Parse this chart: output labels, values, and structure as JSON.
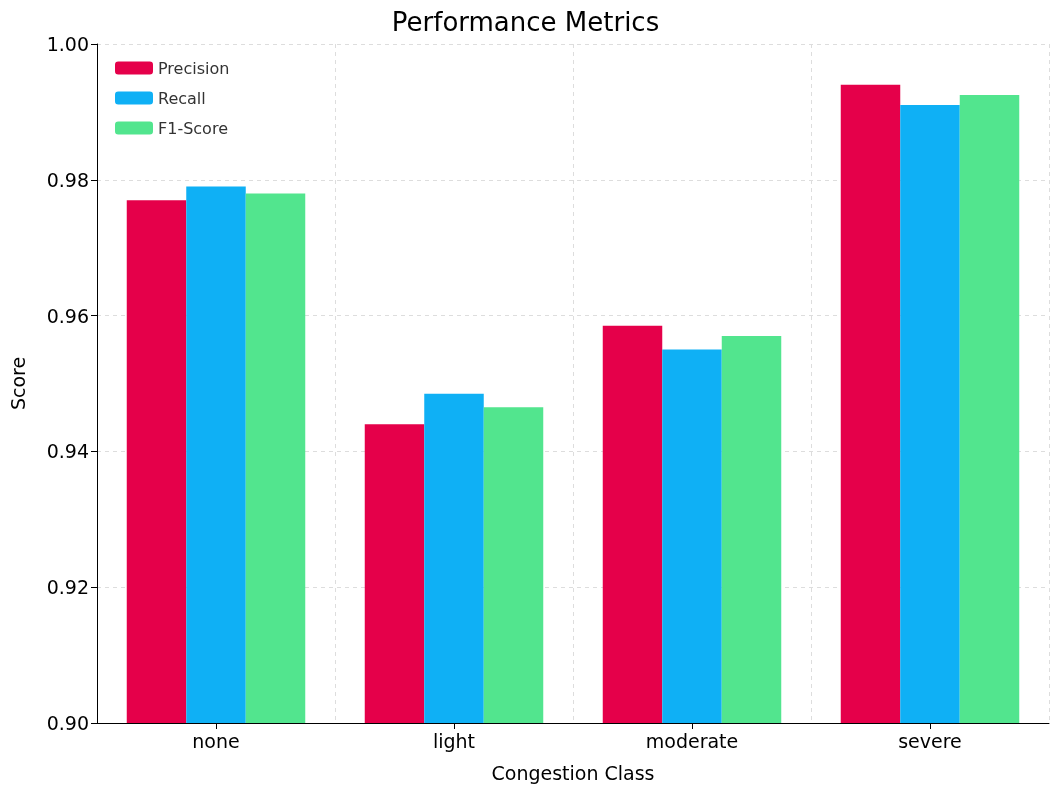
{
  "chart_data": {
    "type": "bar",
    "title": "Performance Metrics",
    "xlabel": "Congestion Class",
    "ylabel": "Score",
    "categories": [
      "none",
      "light",
      "moderate",
      "severe"
    ],
    "series": [
      {
        "name": "Precision",
        "color": "#e5004a",
        "values": [
          0.977,
          0.944,
          0.9585,
          0.994
        ]
      },
      {
        "name": "Recall",
        "color": "#0fb0f5",
        "values": [
          0.979,
          0.9485,
          0.955,
          0.991
        ]
      },
      {
        "name": "F1-Score",
        "color": "#52e58e",
        "values": [
          0.978,
          0.9465,
          0.957,
          0.9925
        ]
      }
    ],
    "ylim": [
      0.9,
      1.0
    ],
    "yticks": [
      {
        "value": 0.9,
        "label": "0.90"
      },
      0.92,
      0.94,
      0.96,
      0.98,
      {
        "value": 1.0,
        "label": "1.00"
      }
    ],
    "grid": true,
    "legend": "top left"
  }
}
